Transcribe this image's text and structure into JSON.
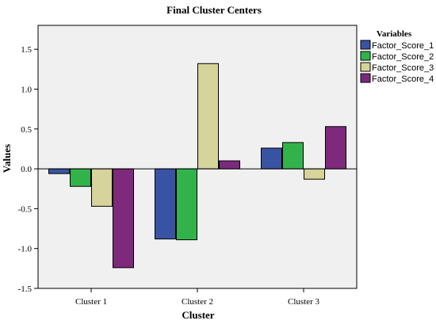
{
  "chart_data": {
    "type": "bar",
    "title": "Final Cluster Centers",
    "xlabel": "Cluster",
    "ylabel": "Values",
    "categories": [
      "Cluster 1",
      "Cluster 2",
      "Cluster 3"
    ],
    "series": [
      {
        "name": "Factor_Score_1",
        "color": "#3953a4",
        "values": [
          -0.06,
          -0.88,
          0.26
        ]
      },
      {
        "name": "Factor_Score_2",
        "color": "#32b34a",
        "values": [
          -0.22,
          -0.89,
          0.33
        ]
      },
      {
        "name": "Factor_Score_3",
        "color": "#d6d39b",
        "values": [
          -0.47,
          1.32,
          -0.13
        ]
      },
      {
        "name": "Factor_Score_4",
        "color": "#7d2a7d",
        "values": [
          -1.24,
          0.1,
          0.53
        ]
      }
    ],
    "ylim": [
      -1.5,
      1.8
    ],
    "yticks": [
      -1.5,
      -1.0,
      -0.5,
      0.0,
      0.5,
      1.0,
      1.5
    ],
    "ytick_labels": [
      "-1.5",
      "-1.0",
      "-0.5",
      "0.0",
      "0.5",
      "1.0",
      "1.5"
    ],
    "grid": false,
    "legend": {
      "title": "Variables",
      "position": "right"
    },
    "plot_background": "#f0f0f0"
  }
}
